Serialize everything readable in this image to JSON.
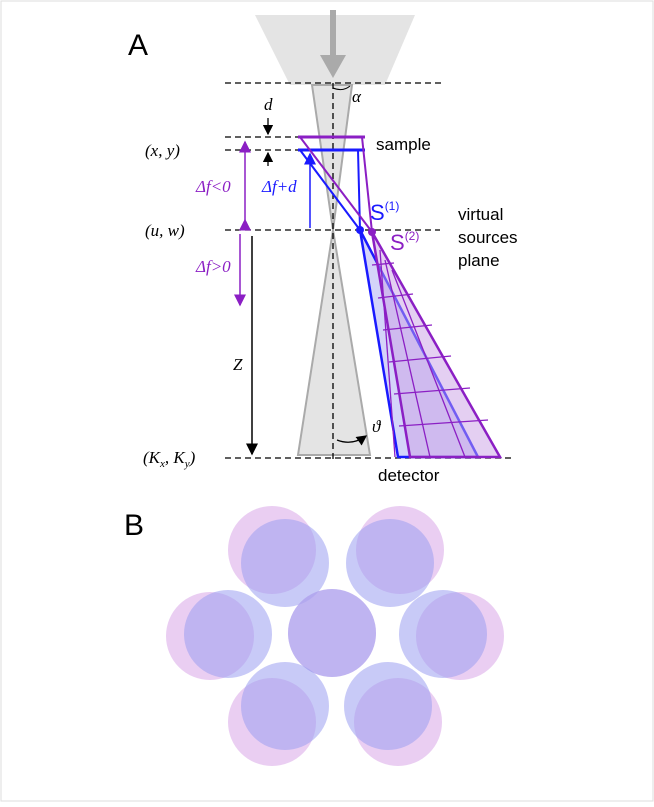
{
  "panel_a": {
    "label": "A",
    "labels": {
      "alpha": "α",
      "d": "d",
      "xy": "(x, y)",
      "sample": "sample",
      "df_neg": "Δf<0",
      "df_plus_d": "Δf+d",
      "s1": {
        "base": "S",
        "sup": "(1)"
      },
      "uw": "(u, w)",
      "virtual": [
        "virtual",
        "sources",
        "plane"
      ],
      "s2": {
        "base": "S",
        "sup": "(2)"
      },
      "df_pos": "Δf>0",
      "z": "Z",
      "theta": "ϑ",
      "k": {
        "open": "(K",
        "sub1": "x",
        "mid": ", K",
        "sub2": "y",
        "close": ")"
      },
      "detector": "detector"
    }
  },
  "panel_b": {
    "label": "B"
  }
}
